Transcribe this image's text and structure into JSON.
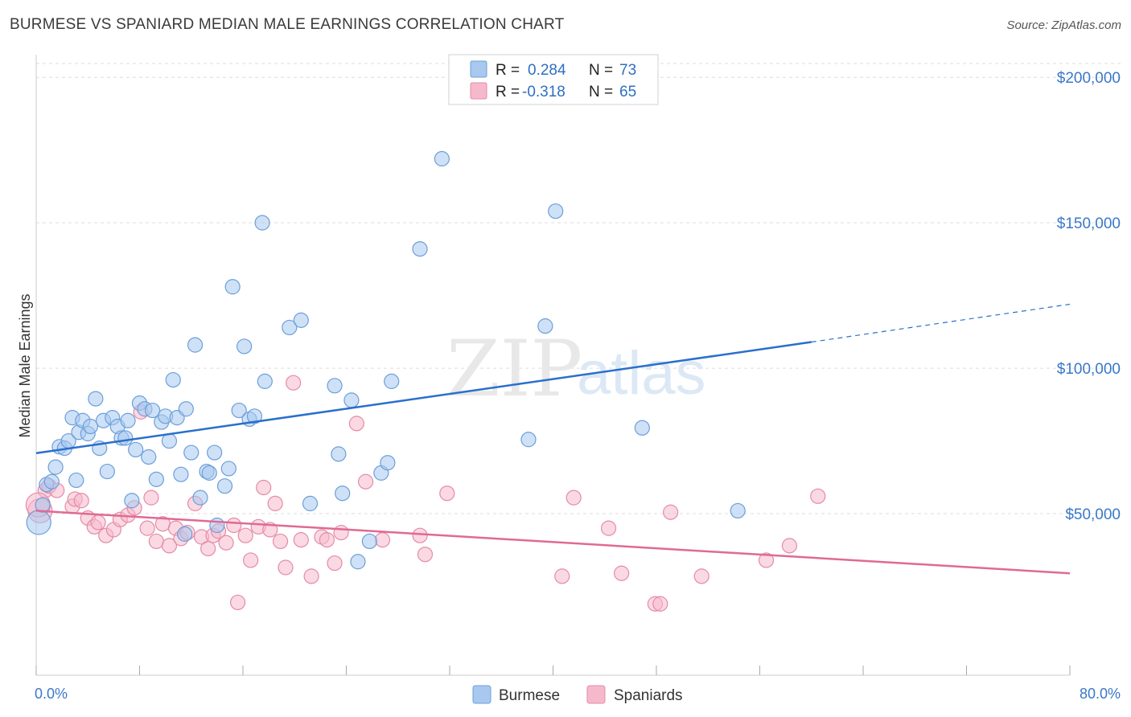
{
  "title": "BURMESE VS SPANIARD MEDIAN MALE EARNINGS CORRELATION CHART",
  "source": "Source: ZipAtlas.com",
  "watermark": {
    "zip": "ZIP",
    "atlas": "atlas"
  },
  "colors": {
    "burmese_fill": "#a8c8f0",
    "burmese_stroke": "#6b9fd8",
    "burmese_line": "#2a6fcc",
    "spaniard_fill": "#f6b9cc",
    "spaniard_stroke": "#e58aa8",
    "spaniard_line": "#e06a93",
    "tick_label": "#3a78c8",
    "grid": "#dddddd"
  },
  "legend": {
    "rows": [
      {
        "r_label": "R =",
        "r_value": "0.284",
        "n_label": "N =",
        "n_value": "73"
      },
      {
        "r_label": "R =",
        "r_value": "-0.318",
        "n_label": "N =",
        "n_value": "65"
      }
    ]
  },
  "bottom_legend": [
    "Burmese",
    "Spaniards"
  ],
  "chart_data": {
    "type": "scatter",
    "title": "BURMESE VS SPANIARD MEDIAN MALE EARNINGS CORRELATION CHART",
    "xlabel": "",
    "ylabel": "Median Male Earnings",
    "xlim": [
      0,
      80
    ],
    "ylim": [
      0,
      210000
    ],
    "x_tick_labels": [
      "0.0%",
      "80.0%"
    ],
    "y_ticks": [
      50000,
      100000,
      150000,
      200000
    ],
    "y_tick_labels": [
      "$50,000",
      "$100,000",
      "$150,000",
      "$200,000"
    ],
    "grid": true,
    "legend_position": "top-center",
    "series": [
      {
        "name": "Burmese",
        "r": 0.284,
        "n": 73,
        "trend": {
          "x0": 0,
          "y0": 70800,
          "x1": 60,
          "y1": 109000,
          "dashed_to_x": 80,
          "dashed_to_y": 122000
        },
        "points": [
          [
            0.2,
            47000
          ],
          [
            0.5,
            53000
          ],
          [
            0.8,
            60000
          ],
          [
            1.2,
            61000
          ],
          [
            1.5,
            66000
          ],
          [
            1.8,
            73000
          ],
          [
            2.2,
            72500
          ],
          [
            2.5,
            75000
          ],
          [
            2.8,
            83000
          ],
          [
            3.1,
            61500
          ],
          [
            3.3,
            78000
          ],
          [
            3.6,
            82000
          ],
          [
            4,
            77500
          ],
          [
            4.2,
            80000
          ],
          [
            4.6,
            89500
          ],
          [
            4.9,
            72500
          ],
          [
            5.2,
            82000
          ],
          [
            5.5,
            64500
          ],
          [
            5.9,
            83000
          ],
          [
            6.3,
            80000
          ],
          [
            6.6,
            76000
          ],
          [
            6.9,
            76000
          ],
          [
            7.1,
            82000
          ],
          [
            7.4,
            54500
          ],
          [
            7.7,
            72000
          ],
          [
            8,
            88000
          ],
          [
            8.4,
            86000
          ],
          [
            8.7,
            69500
          ],
          [
            9,
            85500
          ],
          [
            9.3,
            61800
          ],
          [
            9.7,
            81500
          ],
          [
            10,
            83500
          ],
          [
            10.3,
            75000
          ],
          [
            10.6,
            96000
          ],
          [
            10.9,
            83000
          ],
          [
            11.2,
            63500
          ],
          [
            11.5,
            43000
          ],
          [
            11.6,
            86000
          ],
          [
            12,
            71000
          ],
          [
            12.3,
            108000
          ],
          [
            12.7,
            55500
          ],
          [
            13.2,
            64500
          ],
          [
            13.4,
            64000
          ],
          [
            13.8,
            71000
          ],
          [
            14,
            46000
          ],
          [
            14.6,
            59500
          ],
          [
            14.9,
            65500
          ],
          [
            15.2,
            128000
          ],
          [
            15.7,
            85500
          ],
          [
            16.1,
            107500
          ],
          [
            16.5,
            82500
          ],
          [
            16.9,
            83500
          ],
          [
            17.5,
            150000
          ],
          [
            17.7,
            95500
          ],
          [
            19.6,
            114000
          ],
          [
            20.5,
            116500
          ],
          [
            21.2,
            53500
          ],
          [
            23.1,
            94000
          ],
          [
            23.4,
            70500
          ],
          [
            23.7,
            57000
          ],
          [
            24.4,
            89000
          ],
          [
            24.9,
            33500
          ],
          [
            25.8,
            40500
          ],
          [
            26.7,
            64000
          ],
          [
            27.2,
            67500
          ],
          [
            27.5,
            95500
          ],
          [
            29.7,
            141000
          ],
          [
            31.4,
            172000
          ],
          [
            38.1,
            75500
          ],
          [
            39.4,
            114500
          ],
          [
            40.2,
            154000
          ],
          [
            46.9,
            79500
          ],
          [
            54.3,
            51000
          ]
        ]
      },
      {
        "name": "Spaniards",
        "r": -0.318,
        "n": 65,
        "trend": {
          "x0": 0,
          "y0": 51000,
          "x1": 80,
          "y1": 29500
        },
        "points": [
          [
            0.3,
            51000
          ],
          [
            0.7,
            58000
          ],
          [
            1,
            59500
          ],
          [
            1.6,
            58000
          ],
          [
            2.8,
            52500
          ],
          [
            3,
            55000
          ],
          [
            3.5,
            54500
          ],
          [
            4,
            48500
          ],
          [
            4.5,
            45500
          ],
          [
            4.8,
            47000
          ],
          [
            5.4,
            42500
          ],
          [
            6,
            44500
          ],
          [
            6.5,
            48000
          ],
          [
            7.1,
            49500
          ],
          [
            7.6,
            52000
          ],
          [
            8.1,
            85000
          ],
          [
            8.6,
            45000
          ],
          [
            8.9,
            55500
          ],
          [
            9.3,
            40500
          ],
          [
            9.8,
            46500
          ],
          [
            10.3,
            39000
          ],
          [
            10.8,
            45000
          ],
          [
            11.2,
            41500
          ],
          [
            11.7,
            43500
          ],
          [
            12.3,
            53500
          ],
          [
            12.8,
            42000
          ],
          [
            13.3,
            38000
          ],
          [
            13.7,
            42500
          ],
          [
            14.1,
            44000
          ],
          [
            14.7,
            40000
          ],
          [
            15.3,
            46000
          ],
          [
            15.6,
            19500
          ],
          [
            16.2,
            42500
          ],
          [
            16.6,
            34000
          ],
          [
            17.2,
            45500
          ],
          [
            17.6,
            59000
          ],
          [
            18.1,
            44500
          ],
          [
            18.5,
            53500
          ],
          [
            18.9,
            40500
          ],
          [
            19.3,
            31500
          ],
          [
            19.9,
            95000
          ],
          [
            20.5,
            41000
          ],
          [
            21.3,
            28500
          ],
          [
            22.1,
            42000
          ],
          [
            22.5,
            41000
          ],
          [
            23.1,
            33000
          ],
          [
            23.6,
            43500
          ],
          [
            24.8,
            81000
          ],
          [
            25.5,
            61000
          ],
          [
            26.8,
            41000
          ],
          [
            29.7,
            42500
          ],
          [
            30.1,
            36000
          ],
          [
            31.8,
            57000
          ],
          [
            40.7,
            28500
          ],
          [
            41.6,
            55500
          ],
          [
            44.3,
            45000
          ],
          [
            45.3,
            29500
          ],
          [
            47.9,
            19000
          ],
          [
            48.3,
            19000
          ],
          [
            49.1,
            50500
          ],
          [
            51.5,
            28500
          ],
          [
            56.5,
            34000
          ],
          [
            58.3,
            39000
          ],
          [
            60.5,
            56000
          ],
          [
            0.15,
            53000
          ]
        ]
      }
    ]
  }
}
